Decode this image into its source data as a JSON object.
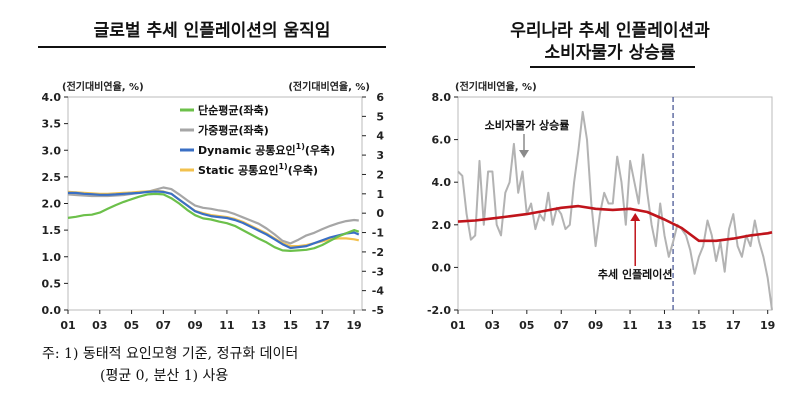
{
  "left": {
    "title": "글로벌 추세 인플레이션의 움직임",
    "unit_left": "(전기대비연율, %)",
    "unit_right": "(전기대비연율, %)",
    "chart_data": {
      "type": "line",
      "x_ticks": [
        "01",
        "03",
        "05",
        "07",
        "09",
        "11",
        "13",
        "15",
        "17",
        "19"
      ],
      "y_left_ticks": [
        "0.0",
        "0.5",
        "1.0",
        "1.5",
        "2.0",
        "2.5",
        "3.0",
        "3.5",
        "4.0"
      ],
      "y_left_lim": [
        0,
        4
      ],
      "y_right_ticks": [
        "-5",
        "-4",
        "-3",
        "-2",
        "-1",
        "0",
        "1",
        "2",
        "3",
        "4",
        "5",
        "6"
      ],
      "y_right_lim": [
        -5,
        6
      ],
      "x_lim": [
        2001,
        2019.5
      ],
      "legend_position": "top-center",
      "series": [
        {
          "name": "단순평균(좌축)",
          "axis": "left",
          "color": "#6cc04a",
          "x": [
            2001,
            2001.5,
            2002,
            2002.5,
            2003,
            2003.5,
            2004,
            2004.5,
            2005,
            2005.5,
            2006,
            2006.5,
            2007,
            2007.5,
            2008,
            2008.5,
            2009,
            2009.5,
            2010,
            2010.5,
            2011,
            2011.5,
            2012,
            2012.5,
            2013,
            2013.5,
            2014,
            2014.5,
            2015,
            2015.5,
            2016,
            2016.5,
            2017,
            2017.5,
            2018,
            2018.5,
            2019,
            2019.3
          ],
          "values": [
            1.73,
            1.75,
            1.78,
            1.79,
            1.83,
            1.9,
            1.97,
            2.03,
            2.08,
            2.13,
            2.17,
            2.18,
            2.17,
            2.1,
            2.0,
            1.88,
            1.78,
            1.72,
            1.7,
            1.66,
            1.63,
            1.58,
            1.5,
            1.42,
            1.34,
            1.27,
            1.18,
            1.12,
            1.11,
            1.12,
            1.13,
            1.16,
            1.22,
            1.3,
            1.38,
            1.44,
            1.5,
            1.47
          ]
        },
        {
          "name": "가중평균(좌축)",
          "axis": "left",
          "color": "#a6a6a6",
          "x": [
            2001,
            2001.5,
            2002,
            2002.5,
            2003,
            2003.5,
            2004,
            2004.5,
            2005,
            2005.5,
            2006,
            2006.5,
            2007,
            2007.5,
            2008,
            2008.5,
            2009,
            2009.5,
            2010,
            2010.5,
            2011,
            2011.5,
            2012,
            2012.5,
            2013,
            2013.5,
            2014,
            2014.5,
            2015,
            2015.5,
            2016,
            2016.5,
            2017,
            2017.5,
            2018,
            2018.5,
            2019,
            2019.3
          ],
          "values": [
            2.17,
            2.16,
            2.15,
            2.14,
            2.14,
            2.14,
            2.15,
            2.16,
            2.18,
            2.2,
            2.22,
            2.26,
            2.3,
            2.27,
            2.17,
            2.06,
            1.96,
            1.92,
            1.9,
            1.87,
            1.85,
            1.8,
            1.74,
            1.68,
            1.62,
            1.53,
            1.42,
            1.3,
            1.25,
            1.32,
            1.4,
            1.45,
            1.52,
            1.58,
            1.63,
            1.67,
            1.69,
            1.68
          ]
        },
        {
          "name": "Dynamic 공통요인",
          "axis": "right",
          "color": "#3a6fc4",
          "x": [
            2001,
            2001.5,
            2002,
            2002.5,
            2003,
            2003.5,
            2004,
            2004.5,
            2005,
            2005.5,
            2006,
            2006.5,
            2007,
            2007.5,
            2008,
            2008.5,
            2009,
            2009.5,
            2010,
            2010.5,
            2011,
            2011.5,
            2012,
            2012.5,
            2013,
            2013.5,
            2014,
            2014.5,
            2015,
            2015.5,
            2016,
            2016.5,
            2017,
            2017.5,
            2018,
            2018.5,
            2019,
            2019.3
          ],
          "values": [
            1.05,
            1.05,
            1.0,
            0.98,
            0.95,
            0.95,
            0.97,
            1.0,
            1.02,
            1.05,
            1.1,
            1.12,
            1.1,
            1.0,
            0.7,
            0.4,
            0.1,
            -0.05,
            -0.15,
            -0.2,
            -0.25,
            -0.35,
            -0.5,
            -0.7,
            -0.9,
            -1.1,
            -1.35,
            -1.6,
            -1.8,
            -1.75,
            -1.7,
            -1.55,
            -1.4,
            -1.25,
            -1.15,
            -1.05,
            -1.0,
            -1.1
          ]
        },
        {
          "name": "Static 공통요인",
          "axis": "right",
          "color": "#f2c14e",
          "x": [
            2001,
            2001.5,
            2002,
            2002.5,
            2003,
            2003.5,
            2004,
            2004.5,
            2005,
            2005.5,
            2006,
            2006.5,
            2007,
            2007.5,
            2008,
            2008.5,
            2009,
            2009.5,
            2010,
            2010.5,
            2011,
            2011.5,
            2012,
            2012.5,
            2013,
            2013.5,
            2014,
            2014.5,
            2015,
            2015.5,
            2016,
            2016.5,
            2017,
            2017.5,
            2018,
            2018.5,
            2019,
            2019.3
          ],
          "values": [
            1.1,
            1.08,
            1.05,
            1.02,
            1.0,
            1.0,
            1.02,
            1.05,
            1.07,
            1.1,
            1.13,
            1.15,
            1.12,
            1.0,
            0.7,
            0.4,
            0.12,
            0.0,
            -0.1,
            -0.15,
            -0.2,
            -0.3,
            -0.45,
            -0.65,
            -0.85,
            -1.05,
            -1.3,
            -1.55,
            -1.7,
            -1.7,
            -1.65,
            -1.55,
            -1.45,
            -1.35,
            -1.3,
            -1.3,
            -1.35,
            -1.4
          ]
        }
      ],
      "legend": [
        {
          "label": "단순평균(좌축)",
          "color": "#6cc04a",
          "sup": ""
        },
        {
          "label": "가중평균(좌축)",
          "color": "#a6a6a6",
          "sup": ""
        },
        {
          "label": "Dynamic 공통요인",
          "color": "#3a6fc4",
          "sup": "1)",
          "suffix": "(우축)"
        },
        {
          "label": "Static 공통요인",
          "color": "#f2c14e",
          "sup": "1)",
          "suffix": "(우축)"
        }
      ]
    }
  },
  "right": {
    "title_line1": "우리나라 추세 인플레이션과",
    "title_line2": "소비자물가 상승률",
    "unit": "(전기대비연율, %)",
    "chart_data": {
      "type": "line",
      "x_ticks": [
        "01",
        "03",
        "05",
        "07",
        "09",
        "11",
        "13",
        "15",
        "17",
        "19"
      ],
      "y_ticks": [
        "-2.0",
        "0.0",
        "2.0",
        "4.0",
        "6.0",
        "8.0"
      ],
      "ylim": [
        -2,
        8
      ],
      "x_lim": [
        2001,
        2019.25
      ],
      "dashed_vline_x": 2013.5,
      "series": [
        {
          "name": "소비자물가 상승률",
          "color": "#b3b3b3",
          "x": [
            2001,
            2001.25,
            2001.5,
            2001.75,
            2002,
            2002.25,
            2002.5,
            2002.75,
            2003,
            2003.25,
            2003.5,
            2003.75,
            2004,
            2004.25,
            2004.5,
            2004.75,
            2005,
            2005.25,
            2005.5,
            2005.75,
            2006,
            2006.25,
            2006.5,
            2006.75,
            2007,
            2007.25,
            2007.5,
            2007.75,
            2008,
            2008.25,
            2008.5,
            2008.75,
            2009,
            2009.25,
            2009.5,
            2009.75,
            2010,
            2010.25,
            2010.5,
            2010.75,
            2011,
            2011.25,
            2011.5,
            2011.75,
            2012,
            2012.25,
            2012.5,
            2012.75,
            2013,
            2013.25,
            2013.5,
            2013.75,
            2014,
            2014.25,
            2014.5,
            2014.75,
            2015,
            2015.25,
            2015.5,
            2015.75,
            2016,
            2016.25,
            2016.5,
            2016.75,
            2017,
            2017.25,
            2017.5,
            2017.75,
            2018,
            2018.25,
            2018.5,
            2018.75,
            2019,
            2019.25
          ],
          "values": [
            4.5,
            4.3,
            2.5,
            1.3,
            1.5,
            5.0,
            2.0,
            4.5,
            4.5,
            2.0,
            1.5,
            3.5,
            4.0,
            5.8,
            3.5,
            4.5,
            2.5,
            3.0,
            1.8,
            2.5,
            2.2,
            3.5,
            2.0,
            2.8,
            2.5,
            1.8,
            2.0,
            4.0,
            5.5,
            7.3,
            6.0,
            3.0,
            1.0,
            2.5,
            3.5,
            3.0,
            3.0,
            5.2,
            4.0,
            2.0,
            5.0,
            4.0,
            3.0,
            5.3,
            3.5,
            2.0,
            1.0,
            3.0,
            1.5,
            0.5,
            1.2,
            2.0,
            1.8,
            1.5,
            0.8,
            -0.3,
            0.5,
            1.0,
            2.2,
            1.5,
            0.3,
            1.2,
            -0.2,
            1.8,
            2.5,
            1.0,
            0.5,
            1.5,
            1.0,
            2.2,
            1.2,
            0.5,
            -0.5,
            -2.0
          ]
        },
        {
          "name": "추세 인플레이션",
          "color": "#c0141b",
          "x": [
            2001,
            2002,
            2003,
            2004,
            2005,
            2006,
            2007,
            2008,
            2009,
            2010,
            2011,
            2012,
            2013,
            2014,
            2015,
            2016,
            2017,
            2018,
            2019,
            2019.25
          ],
          "values": [
            2.15,
            2.2,
            2.3,
            2.4,
            2.5,
            2.65,
            2.8,
            2.88,
            2.75,
            2.7,
            2.75,
            2.6,
            2.25,
            1.85,
            1.25,
            1.25,
            1.35,
            1.5,
            1.6,
            1.65
          ]
        }
      ],
      "annotations": [
        {
          "text": "소비자물가 상승률",
          "color": "#8a8a8a"
        },
        {
          "text": "추세 인플레이션",
          "color": "#c0141b"
        }
      ]
    }
  },
  "note_line1": "주: 1) 동태적 요인모형 기준, 정규화 데이터",
  "note_line2": "(평균 0, 분산 1) 사용",
  "colors": {
    "axis": "#222222",
    "frame": "#bbbbbb"
  }
}
